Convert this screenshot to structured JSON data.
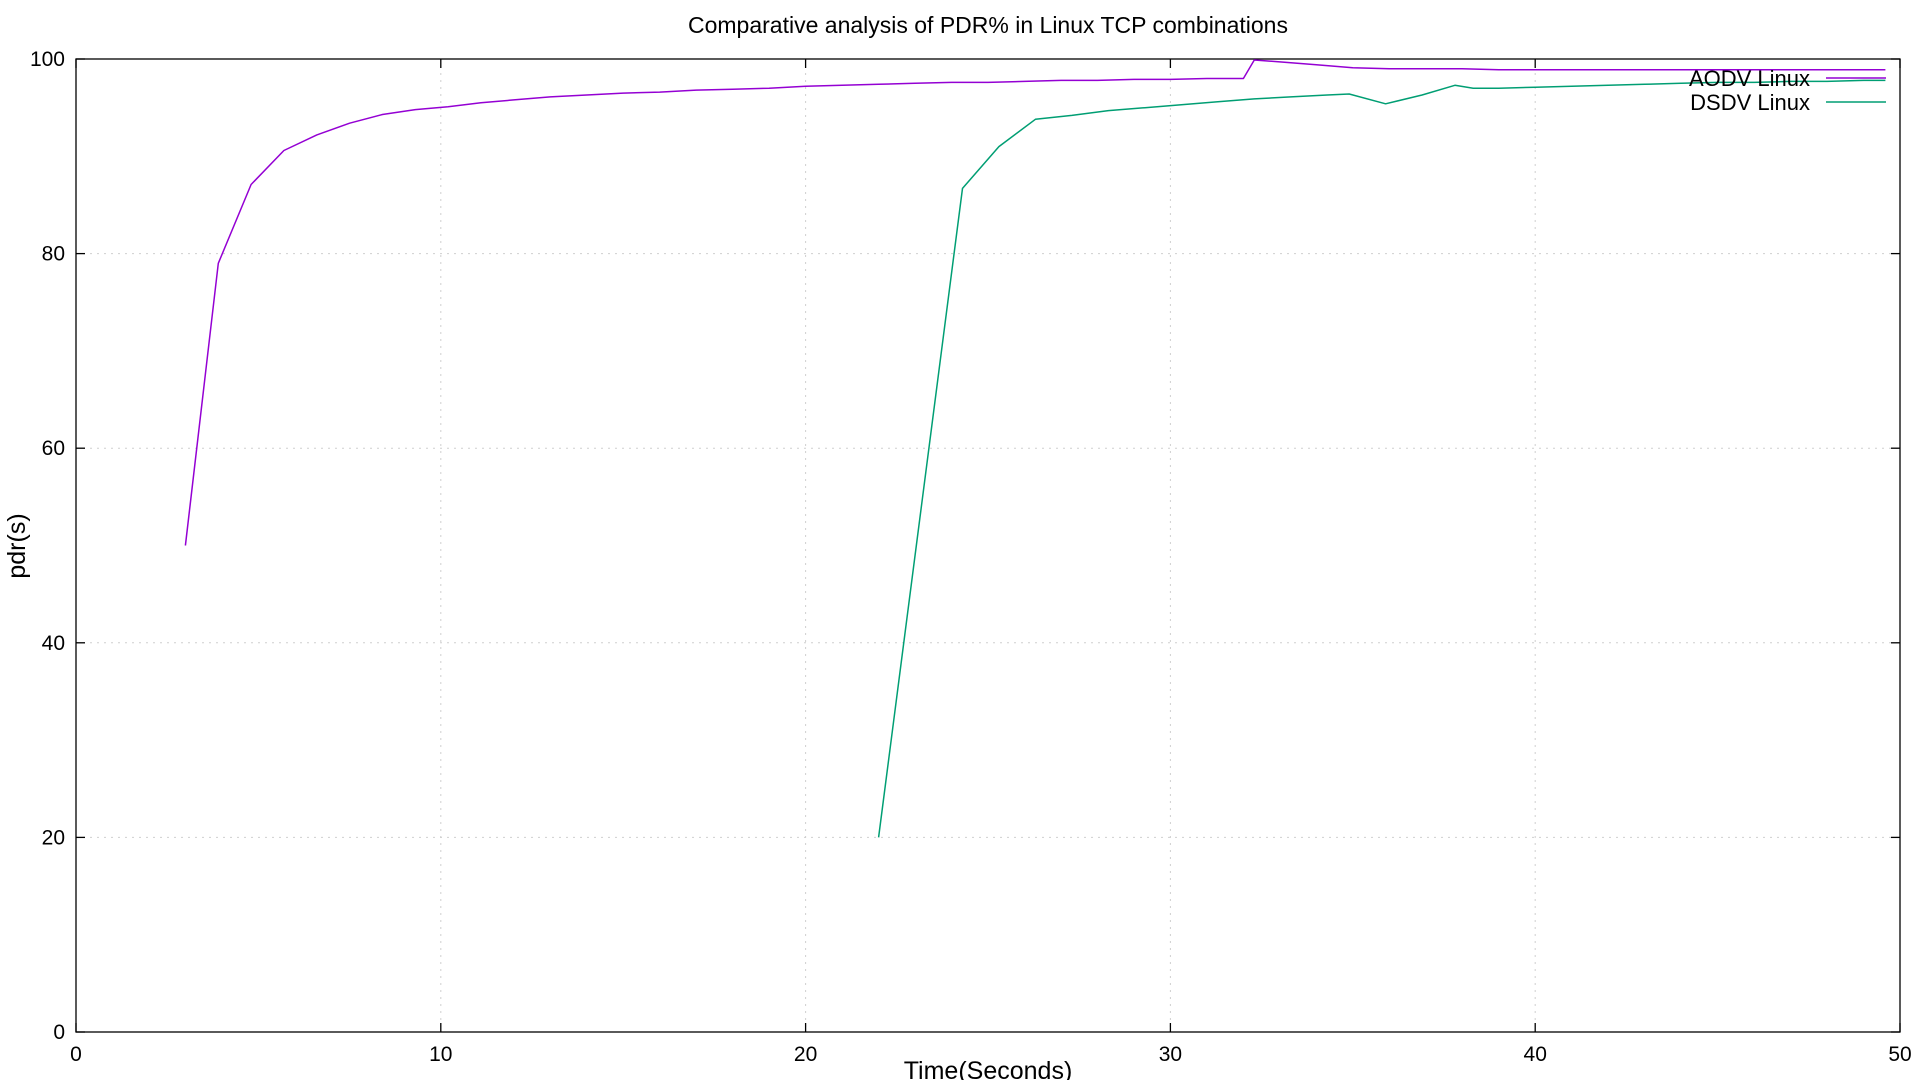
{
  "chart_data": {
    "type": "line",
    "title": "Comparative analysis of PDR% in Linux TCP combinations",
    "xlabel": "Time(Seconds)",
    "ylabel": "pdr(s)",
    "xlim": [
      0,
      50
    ],
    "ylim": [
      0,
      100
    ],
    "xticks": [
      "0",
      "10",
      "20",
      "30",
      "40",
      "50"
    ],
    "yticks": [
      "0",
      "20",
      "40",
      "60",
      "80",
      "100"
    ],
    "grid": true,
    "legend_position": "top-right",
    "series": [
      {
        "name": "AODV Linux",
        "color": "#9400d3",
        "x": [
          3,
          3.9,
          4.8,
          5.7,
          6.6,
          7.5,
          8.4,
          9.3,
          10.2,
          11.1,
          12,
          13,
          14,
          15,
          16,
          17,
          18,
          19,
          20,
          21,
          22,
          23,
          24,
          25,
          26,
          27,
          28,
          29,
          30,
          31,
          32,
          32.3,
          33,
          34,
          35,
          36,
          37,
          38,
          39,
          40,
          41,
          42,
          43,
          44,
          45,
          46,
          47,
          48,
          49,
          49.6
        ],
        "y": [
          50,
          79,
          87.1,
          90.6,
          92.2,
          93.4,
          94.3,
          94.8,
          95.1,
          95.5,
          95.8,
          96.1,
          96.3,
          96.5,
          96.6,
          96.8,
          96.9,
          97.0,
          97.2,
          97.3,
          97.4,
          97.5,
          97.6,
          97.6,
          97.7,
          97.8,
          97.8,
          97.9,
          97.9,
          98.0,
          98.0,
          99.9,
          99.7,
          99.4,
          99.1,
          99.0,
          99.0,
          99.0,
          98.9,
          98.9,
          98.9,
          98.9,
          98.9,
          98.9,
          98.9,
          98.9,
          98.9,
          98.9,
          98.9,
          98.9
        ]
      },
      {
        "name": "DSDV Linux",
        "color": "#009e73",
        "x": [
          22,
          24.3,
          25.3,
          26.3,
          27.3,
          28.3,
          29.3,
          30.3,
          31.3,
          32.3,
          33.3,
          34.3,
          34.9,
          35.9,
          36.9,
          37.8,
          38.3,
          39,
          40,
          41,
          42,
          43,
          44,
          45,
          46,
          47,
          48,
          49,
          49.6
        ],
        "y": [
          20,
          86.7,
          91.0,
          93.8,
          94.2,
          94.7,
          95.0,
          95.3,
          95.6,
          95.9,
          96.1,
          96.3,
          96.4,
          95.4,
          96.3,
          97.3,
          97.0,
          97.0,
          97.1,
          97.2,
          97.3,
          97.4,
          97.5,
          97.6,
          97.6,
          97.7,
          97.7,
          97.8,
          97.8
        ]
      }
    ]
  }
}
